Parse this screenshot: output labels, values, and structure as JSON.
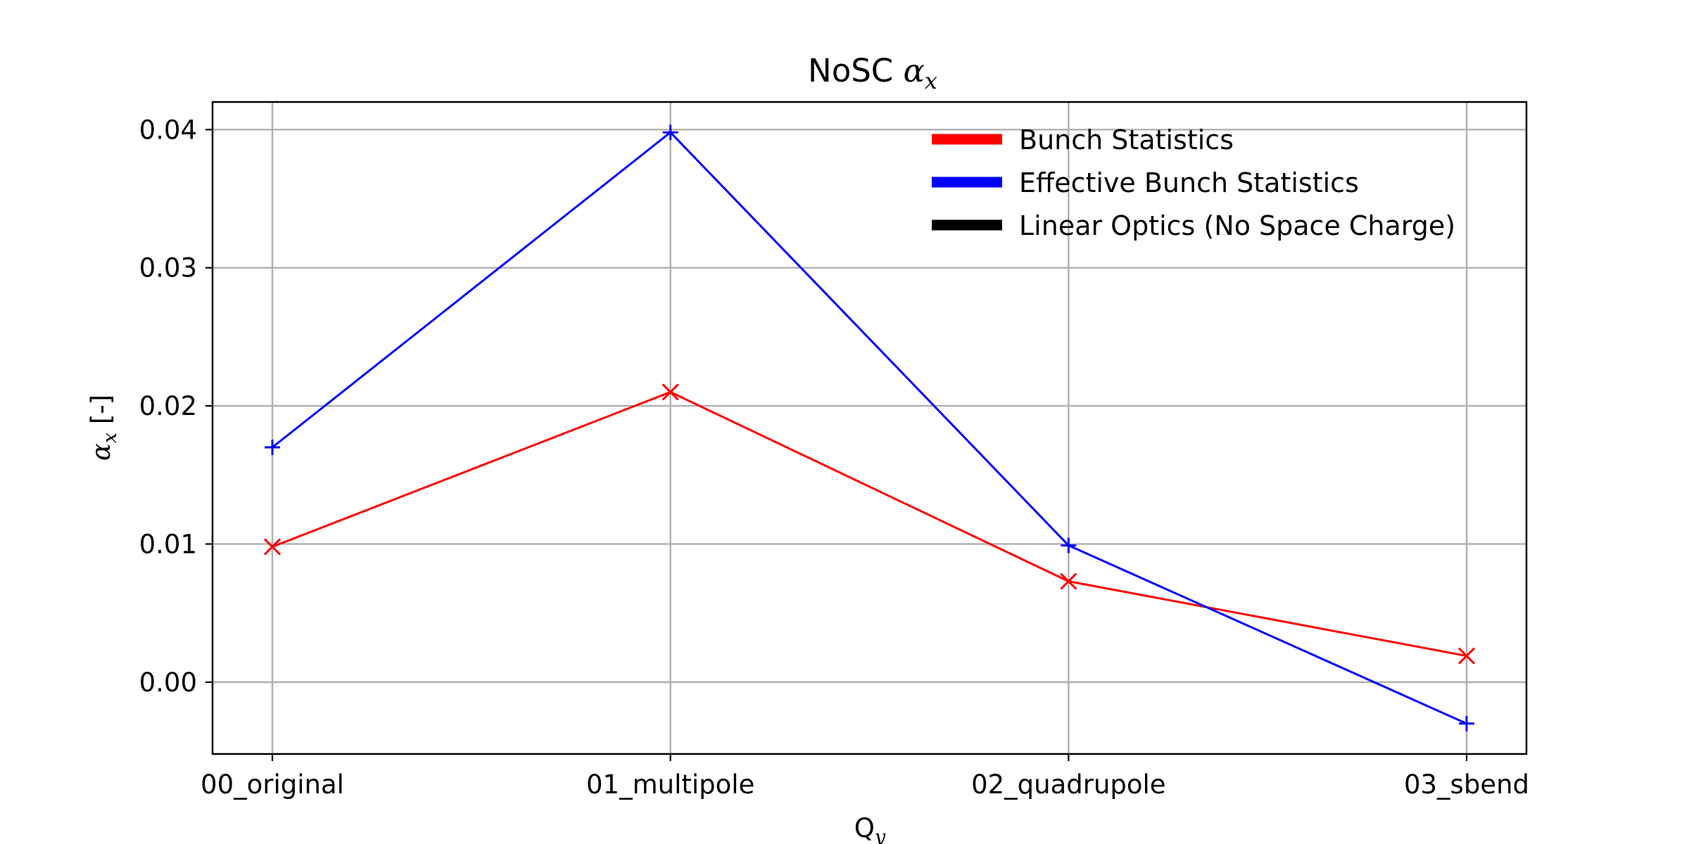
{
  "chart_data": {
    "type": "line",
    "title": {
      "prefix": "NoSC ",
      "symbol": "α",
      "subscript": "x"
    },
    "xlabel": {
      "symbol": "Q",
      "subscript": "y"
    },
    "ylabel": {
      "symbol": "α",
      "subscript": "x",
      "unit": " [-]"
    },
    "categories": [
      "00_original",
      "01_multipole",
      "02_quadrupole",
      "03_sbend"
    ],
    "ylim": [
      -0.0052,
      0.042
    ],
    "yticks": [
      0.0,
      0.01,
      0.02,
      0.03,
      0.04
    ],
    "ytick_labels": [
      "0.00",
      "0.01",
      "0.02",
      "0.03",
      "0.04"
    ],
    "grid": true,
    "legend_position": "top-right",
    "series": [
      {
        "name": "Bunch Statistics",
        "color": "#ff0000",
        "marker": "x",
        "values": [
          0.0098,
          0.021,
          0.0073,
          0.0019
        ]
      },
      {
        "name": "Effective Bunch Statistics",
        "color": "#0000ff",
        "marker": "+",
        "values": [
          0.017,
          0.0398,
          0.0099,
          -0.003
        ]
      }
    ],
    "legend_entries": [
      {
        "name": "Bunch Statistics",
        "color": "#ff0000"
      },
      {
        "name": "Effective Bunch Statistics",
        "color": "#0000ff"
      },
      {
        "name": "Linear Optics (No Space Charge)",
        "color": "#000000"
      }
    ]
  }
}
